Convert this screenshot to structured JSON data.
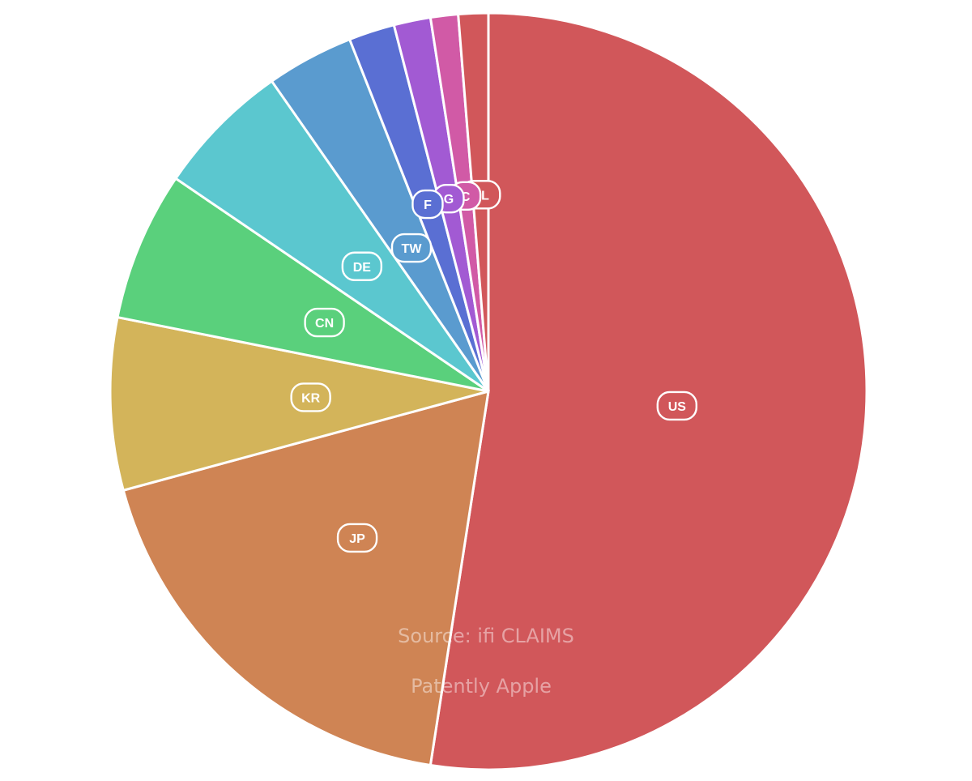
{
  "chart_data": {
    "type": "pie",
    "title": "",
    "start": "top",
    "direction": "clockwise",
    "slices": [
      {
        "label": "US",
        "value": 53.5,
        "color": "#d1575a"
      },
      {
        "label": "JP",
        "value": 18.7,
        "color": "#cf8454"
      },
      {
        "label": "KR",
        "value": 7.5,
        "color": "#d3b45a"
      },
      {
        "label": "CN",
        "value": 6.5,
        "color": "#5ad07c"
      },
      {
        "label": "DE",
        "value": 5.9,
        "color": "#5bc7cf"
      },
      {
        "label": "TW",
        "value": 3.8,
        "color": "#5a9bcf"
      },
      {
        "label": "F",
        "value": 2.0,
        "color": "#5a6fd3"
      },
      {
        "label": "G",
        "value": 1.6,
        "color": "#a25ad3"
      },
      {
        "label": "C",
        "value": 1.2,
        "color": "#d15aa6"
      },
      {
        "label": "NL",
        "value": 1.3,
        "color": "#d1575a"
      }
    ],
    "annotations": [
      "Source: ifi CLAIMS",
      "Patently Apple"
    ]
  }
}
